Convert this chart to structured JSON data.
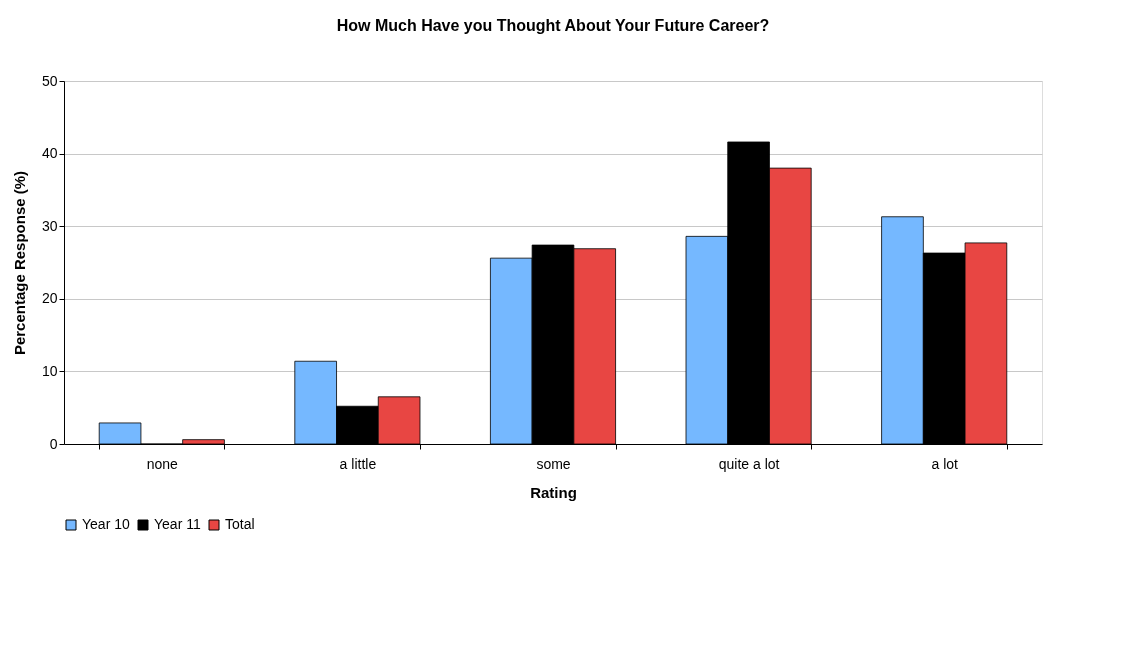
{
  "chart_data": {
    "type": "bar",
    "title": "How Much Have you Thought About Your Future Career?",
    "xlabel": "Rating",
    "ylabel": "Percentage Response (%)",
    "categories": [
      "none",
      "a little",
      "some",
      "quite a lot",
      "a lot"
    ],
    "series": [
      {
        "name": "Year 10",
        "color": "#75b8ff",
        "values": [
          2.9,
          11.4,
          25.6,
          28.6,
          31.3
        ]
      },
      {
        "name": "Year 11",
        "color": "#000000",
        "values": [
          0,
          5.2,
          27.4,
          41.6,
          26.3
        ]
      },
      {
        "name": "Total",
        "color": "#e84643",
        "values": [
          0.6,
          6.5,
          26.9,
          38.0,
          27.7
        ]
      }
    ],
    "ylim": [
      0,
      50
    ],
    "yticks": [
      0,
      10,
      20,
      30,
      40,
      50
    ],
    "grid": "y",
    "legend": "bottom left"
  }
}
